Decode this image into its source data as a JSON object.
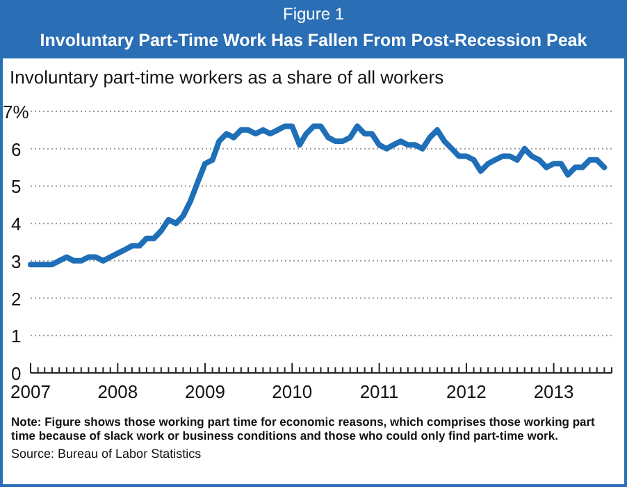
{
  "chart_data": {
    "type": "line",
    "subtitle": "Figure 1",
    "title": "Involuntary Part-Time Work Has Fallen From Post-Recession Peak",
    "ylabel": "Involuntary part-time workers as a share of all workers",
    "x": [
      "2007-01",
      "2007-02",
      "2007-03",
      "2007-04",
      "2007-05",
      "2007-06",
      "2007-07",
      "2007-08",
      "2007-09",
      "2007-10",
      "2007-11",
      "2007-12",
      "2008-01",
      "2008-02",
      "2008-03",
      "2008-04",
      "2008-05",
      "2008-06",
      "2008-07",
      "2008-08",
      "2008-09",
      "2008-10",
      "2008-11",
      "2008-12",
      "2009-01",
      "2009-02",
      "2009-03",
      "2009-04",
      "2009-05",
      "2009-06",
      "2009-07",
      "2009-08",
      "2009-09",
      "2009-10",
      "2009-11",
      "2009-12",
      "2010-01",
      "2010-02",
      "2010-03",
      "2010-04",
      "2010-05",
      "2010-06",
      "2010-07",
      "2010-08",
      "2010-09",
      "2010-10",
      "2010-11",
      "2010-12",
      "2011-01",
      "2011-02",
      "2011-03",
      "2011-04",
      "2011-05",
      "2011-06",
      "2011-07",
      "2011-08",
      "2011-09",
      "2011-10",
      "2011-11",
      "2011-12",
      "2012-01",
      "2012-02",
      "2012-03",
      "2012-04",
      "2012-05",
      "2012-06",
      "2012-07",
      "2012-08",
      "2012-09",
      "2012-10",
      "2012-11",
      "2012-12",
      "2013-01",
      "2013-02",
      "2013-03",
      "2013-04",
      "2013-05",
      "2013-06",
      "2013-07",
      "2013-08"
    ],
    "series": [
      {
        "color": "#1f6fb8",
        "values": [
          2.9,
          2.9,
          2.9,
          2.9,
          3.0,
          3.1,
          3.0,
          3.0,
          3.1,
          3.1,
          3.0,
          3.1,
          3.2,
          3.3,
          3.4,
          3.4,
          3.6,
          3.6,
          3.8,
          4.1,
          4.0,
          4.2,
          4.6,
          5.1,
          5.6,
          5.7,
          6.2,
          6.4,
          6.3,
          6.5,
          6.5,
          6.4,
          6.5,
          6.4,
          6.5,
          6.6,
          6.6,
          6.1,
          6.4,
          6.6,
          6.6,
          6.3,
          6.2,
          6.2,
          6.3,
          6.6,
          6.4,
          6.4,
          6.1,
          6.0,
          6.1,
          6.2,
          6.1,
          6.1,
          6.0,
          6.3,
          6.5,
          6.2,
          6.0,
          5.8,
          5.8,
          5.7,
          5.4,
          5.6,
          5.7,
          5.8,
          5.8,
          5.7,
          6.0,
          5.8,
          5.7,
          5.5,
          5.6,
          5.6,
          5.3,
          5.5,
          5.5,
          5.7,
          5.7,
          5.5
        ]
      }
    ],
    "xlim": [
      "2007-01",
      "2013-09"
    ],
    "xticks": [
      "2007",
      {
        "value": "2007-02",
        "label": null
      },
      {
        "value": "2007-03",
        "label": null
      },
      {
        "value": "2007-04",
        "label": null
      },
      {
        "value": "2007-05",
        "label": null
      },
      {
        "value": "2007-06",
        "label": null
      },
      {
        "value": "2007-07",
        "label": null
      },
      {
        "value": "2007-08",
        "label": null
      },
      {
        "value": "2007-09",
        "label": null
      },
      {
        "value": "2007-10",
        "label": null
      },
      {
        "value": "2007-11",
        "label": null
      },
      {
        "value": "2007-12",
        "label": null
      },
      "2008",
      {
        "value": "2008-02",
        "label": null
      },
      {
        "value": "2008-03",
        "label": null
      },
      {
        "value": "2008-04",
        "label": null
      },
      {
        "value": "2008-05",
        "label": null
      },
      {
        "value": "2008-06",
        "label": null
      },
      {
        "value": "2008-07",
        "label": null
      },
      {
        "value": "2008-08",
        "label": null
      },
      {
        "value": "2008-09",
        "label": null
      },
      {
        "value": "2008-10",
        "label": null
      },
      {
        "value": "2008-11",
        "label": null
      },
      {
        "value": "2008-12",
        "label": null
      },
      "2009",
      {
        "value": "2009-02",
        "label": null
      },
      {
        "value": "2009-03",
        "label": null
      },
      {
        "value": "2009-04",
        "label": null
      },
      {
        "value": "2009-05",
        "label": null
      },
      {
        "value": "2009-06",
        "label": null
      },
      {
        "value": "2009-07",
        "label": null
      },
      {
        "value": "2009-08",
        "label": null
      },
      {
        "value": "2009-09",
        "label": null
      },
      {
        "value": "2009-10",
        "label": null
      },
      {
        "value": "2009-11",
        "label": null
      },
      {
        "value": "2009-12",
        "label": null
      },
      "2010",
      {
        "value": "2010-02",
        "label": null
      },
      {
        "value": "2010-03",
        "label": null
      },
      {
        "value": "2010-04",
        "label": null
      },
      {
        "value": "2010-05",
        "label": null
      },
      {
        "value": "2010-06",
        "label": null
      },
      {
        "value": "2010-07",
        "label": null
      },
      {
        "value": "2010-08",
        "label": null
      },
      {
        "value": "2010-09",
        "label": null
      },
      {
        "value": "2010-10",
        "label": null
      },
      {
        "value": "2010-11",
        "label": null
      },
      {
        "value": "2010-12",
        "label": null
      },
      "2011",
      {
        "value": "2011-02",
        "label": null
      },
      {
        "value": "2011-03",
        "label": null
      },
      {
        "value": "2011-04",
        "label": null
      },
      {
        "value": "2011-05",
        "label": null
      },
      {
        "value": "2011-06",
        "label": null
      },
      {
        "value": "2011-07",
        "label": null
      },
      {
        "value": "2011-08",
        "label": null
      },
      {
        "value": "2011-09",
        "label": null
      },
      {
        "value": "2011-10",
        "label": null
      },
      {
        "value": "2011-11",
        "label": null
      },
      {
        "value": "2011-12",
        "label": null
      },
      "2012",
      {
        "value": "2012-02",
        "label": null
      },
      {
        "value": "2012-03",
        "label": null
      },
      {
        "value": "2012-04",
        "label": null
      },
      {
        "value": "2012-05",
        "label": null
      },
      {
        "value": "2012-06",
        "label": null
      },
      {
        "value": "2012-07",
        "label": null
      },
      {
        "value": "2012-08",
        "label": null
      },
      {
        "value": "2012-09",
        "label": null
      },
      {
        "value": "2012-10",
        "label": null
      },
      {
        "value": "2012-11",
        "label": null
      },
      {
        "value": "2012-12",
        "label": null
      },
      "2013",
      {
        "value": "2013-02",
        "label": null
      },
      {
        "value": "2013-03",
        "label": null
      },
      {
        "value": "2013-04",
        "label": null
      },
      {
        "value": "2013-05",
        "label": null
      },
      {
        "value": "2013-06",
        "label": null
      },
      {
        "value": "2013-07",
        "label": null
      },
      {
        "value": "2013-08",
        "label": null
      },
      {
        "value": "2013-09",
        "label": null
      }
    ],
    "ylim": [
      0,
      7
    ],
    "yticks": [
      0,
      1,
      2,
      3,
      4,
      5,
      6,
      {
        "value": 7,
        "label": "7%"
      }
    ],
    "grid": "y",
    "marker": "none",
    "line_style": "solid",
    "annotations": [
      "Note: Figure shows those working part time for economic reasons, which comprises those working part time because of slack work or business conditions and those who could only find part-time work.",
      "Source: Bureau of Labor Statistics"
    ]
  }
}
